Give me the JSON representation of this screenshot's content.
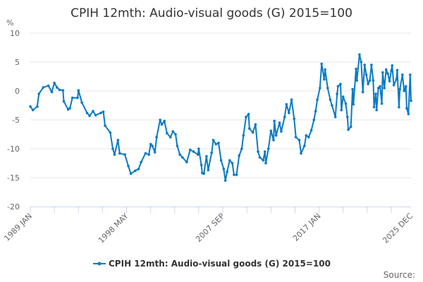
{
  "chart_data": {
    "type": "line",
    "title": "CPIH 12mth: Audio-visual goods (G) 2015=100",
    "ylabel": "%",
    "xlabel": "",
    "ylim": [
      -20,
      10
    ],
    "yticks": [
      10,
      5,
      0,
      -5,
      -10,
      -15,
      -20
    ],
    "xlim": [
      "1989-01",
      "2025-12"
    ],
    "xtick_labels": [
      "1989 JAN",
      "1998 MAY",
      "2007 SEP",
      "2017 JAN",
      "2025 DEC"
    ],
    "grid": true,
    "legend_position": "bottom",
    "source_label": "Source:",
    "series": [
      {
        "name": "CPIH 12mth: Audio-visual goods (G) 2015=100",
        "color": "#0a7ac4",
        "points": [
          [
            "1989-01",
            -2.7
          ],
          [
            "1989-04",
            -3.3
          ],
          [
            "1989-09",
            -2.7
          ],
          [
            "1989-11",
            -0.5
          ],
          [
            "1990-04",
            0.6
          ],
          [
            "1990-10",
            0.9
          ],
          [
            "1991-02",
            -0.2
          ],
          [
            "1991-05",
            1.4
          ],
          [
            "1991-08",
            0.6
          ],
          [
            "1991-11",
            0.2
          ],
          [
            "1992-03",
            0.1
          ],
          [
            "1992-04",
            -1.8
          ],
          [
            "1992-09",
            -3.2
          ],
          [
            "1992-11",
            -3.0
          ],
          [
            "1993-02",
            -1.2
          ],
          [
            "1993-08",
            -1.2
          ],
          [
            "1993-09",
            0.1
          ],
          [
            "1994-01",
            -2.0
          ],
          [
            "1994-07",
            -3.8
          ],
          [
            "1994-10",
            -4.3
          ],
          [
            "1995-02",
            -3.5
          ],
          [
            "1995-05",
            -4.2
          ],
          [
            "1995-11",
            -3.8
          ],
          [
            "1996-02",
            -3.6
          ],
          [
            "1996-04",
            -6.0
          ],
          [
            "1996-10",
            -7.2
          ],
          [
            "1997-01",
            -10.0
          ],
          [
            "1997-03",
            -11.0
          ],
          [
            "1997-07",
            -8.5
          ],
          [
            "1997-09",
            -10.8
          ],
          [
            "1998-03",
            -11.0
          ],
          [
            "1998-07",
            -13.0
          ],
          [
            "1998-10",
            -14.3
          ],
          [
            "1999-03",
            -13.8
          ],
          [
            "1999-07",
            -13.5
          ],
          [
            "1999-10",
            -12.3
          ],
          [
            "2000-03",
            -10.8
          ],
          [
            "2000-07",
            -11.0
          ],
          [
            "2000-09",
            -9.2
          ],
          [
            "2000-11",
            -9.5
          ],
          [
            "2001-02",
            -10.6
          ],
          [
            "2001-04",
            -8.0
          ],
          [
            "2001-08",
            -5.0
          ],
          [
            "2001-10",
            -5.8
          ],
          [
            "2002-01",
            -5.2
          ],
          [
            "2002-04",
            -7.3
          ],
          [
            "2002-08",
            -8.0
          ],
          [
            "2002-11",
            -7.0
          ],
          [
            "2003-02",
            -7.5
          ],
          [
            "2003-04",
            -9.5
          ],
          [
            "2003-07",
            -11.0
          ],
          [
            "2003-10",
            -11.5
          ],
          [
            "2004-03",
            -12.3
          ],
          [
            "2004-07",
            -10.2
          ],
          [
            "2004-11",
            -10.5
          ],
          [
            "2005-04",
            -11.0
          ],
          [
            "2005-05",
            -10.0
          ],
          [
            "2005-08",
            -12.8
          ],
          [
            "2005-09",
            -14.2
          ],
          [
            "2005-11",
            -14.3
          ],
          [
            "2006-02",
            -11.3
          ],
          [
            "2006-04",
            -13.7
          ],
          [
            "2006-08",
            -10.7
          ],
          [
            "2006-10",
            -8.5
          ],
          [
            "2007-01",
            -9.2
          ],
          [
            "2007-04",
            -9.0
          ],
          [
            "2007-07",
            -12.0
          ],
          [
            "2007-10",
            -13.5
          ],
          [
            "2007-12",
            -15.5
          ],
          [
            "2008-02",
            -14.0
          ],
          [
            "2008-05",
            -12.0
          ],
          [
            "2008-08",
            -12.5
          ],
          [
            "2008-10",
            -14.5
          ],
          [
            "2009-01",
            -14.5
          ],
          [
            "2009-04",
            -11.2
          ],
          [
            "2009-07",
            -10.0
          ],
          [
            "2009-09",
            -7.7
          ],
          [
            "2009-12",
            -4.5
          ],
          [
            "2010-03",
            -4.0
          ],
          [
            "2010-04",
            -6.5
          ],
          [
            "2010-08",
            -7.2
          ],
          [
            "2010-11",
            -5.8
          ],
          [
            "2011-02",
            -10.5
          ],
          [
            "2011-04",
            -11.5
          ],
          [
            "2011-08",
            -12.0
          ],
          [
            "2011-10",
            -10.5
          ],
          [
            "2011-11",
            -12.5
          ],
          [
            "2012-02",
            -10.0
          ],
          [
            "2012-05",
            -6.9
          ],
          [
            "2012-08",
            -8.5
          ],
          [
            "2012-09",
            -5.2
          ],
          [
            "2012-11",
            -7.7
          ],
          [
            "2013-03",
            -5.5
          ],
          [
            "2013-05",
            -7.0
          ],
          [
            "2013-09",
            -4.5
          ],
          [
            "2013-11",
            -2.3
          ],
          [
            "2014-02",
            -3.8
          ],
          [
            "2014-05",
            -1.5
          ],
          [
            "2014-08",
            -4.8
          ],
          [
            "2014-10",
            -8.0
          ],
          [
            "2015-02",
            -8.5
          ],
          [
            "2015-04",
            -10.8
          ],
          [
            "2015-08",
            -9.5
          ],
          [
            "2015-10",
            -7.7
          ],
          [
            "2016-01",
            -8.0
          ],
          [
            "2016-04",
            -6.8
          ],
          [
            "2016-07",
            -5.0
          ],
          [
            "2016-09",
            -3.5
          ],
          [
            "2016-11",
            -1.5
          ],
          [
            "2017-02",
            0.5
          ],
          [
            "2017-04",
            4.7
          ],
          [
            "2017-07",
            2.0
          ],
          [
            "2017-08",
            3.7
          ],
          [
            "2017-11",
            0.5
          ],
          [
            "2018-02",
            -1.5
          ],
          [
            "2018-04",
            -2.5
          ],
          [
            "2018-08",
            -4.5
          ],
          [
            "2018-10",
            -0.5
          ],
          [
            "2018-11",
            0.8
          ],
          [
            "2019-02",
            1.2
          ],
          [
            "2019-03",
            -3.3
          ],
          [
            "2019-05",
            -1.0
          ],
          [
            "2019-08",
            -2.2
          ],
          [
            "2019-10",
            -4.5
          ],
          [
            "2019-11",
            -6.7
          ],
          [
            "2020-02",
            -6.2
          ],
          [
            "2020-04",
            0.3
          ],
          [
            "2020-05",
            -2.3
          ],
          [
            "2020-08",
            3.8
          ],
          [
            "2020-09",
            1.8
          ],
          [
            "2020-12",
            6.3
          ],
          [
            "2021-02",
            5.0
          ],
          [
            "2021-04",
            -0.2
          ],
          [
            "2021-06",
            4.5
          ],
          [
            "2021-08",
            2.8
          ],
          [
            "2021-10",
            1.2
          ],
          [
            "2021-12",
            1.8
          ],
          [
            "2022-02",
            4.5
          ],
          [
            "2022-04",
            1.8
          ],
          [
            "2022-05",
            -2.8
          ],
          [
            "2022-07",
            -0.5
          ],
          [
            "2022-08",
            -3.3
          ],
          [
            "2022-10",
            0.5
          ],
          [
            "2022-12",
            0.8
          ],
          [
            "2023-02",
            -2.2
          ],
          [
            "2023-03",
            3.2
          ],
          [
            "2023-05",
            0.5
          ],
          [
            "2023-07",
            3.7
          ],
          [
            "2023-09",
            3.0
          ],
          [
            "2023-11",
            1.7
          ],
          [
            "2024-01",
            3.5
          ],
          [
            "2024-02",
            4.4
          ],
          [
            "2024-04",
            1.0
          ],
          [
            "2024-07",
            2.0
          ],
          [
            "2024-08",
            3.6
          ],
          [
            "2024-10",
            -2.8
          ],
          [
            "2024-11",
            0.3
          ],
          [
            "2025-02",
            2.8
          ],
          [
            "2025-04",
            0.0
          ],
          [
            "2025-06",
            0.8
          ],
          [
            "2025-07",
            -3.0
          ],
          [
            "2025-09",
            -4.0
          ],
          [
            "2025-11",
            2.8
          ],
          [
            "2025-12",
            -1.7
          ]
        ]
      }
    ]
  }
}
